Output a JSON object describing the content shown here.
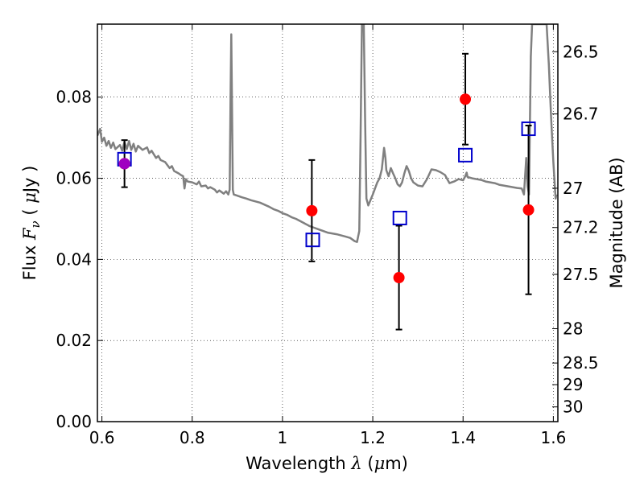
{
  "chart_data": {
    "type": "scatter",
    "xlabel": "Wavelength  λ (μm)",
    "ylabel": "Flux  F_ν  ( μJy )",
    "ylabel_parts": {
      "pre": "Flux  ",
      "var": "F",
      "sub": "ν",
      "post": "  (  ",
      "unit_mu": "μ",
      "unit_rest": "Jy )"
    },
    "xlabel_parts": {
      "pre": "Wavelength  ",
      "var": "λ",
      "post": " (",
      "unit_mu": "μ",
      "unit_rest": "m)"
    },
    "y2label": "Magnitude (AB)",
    "xlim": [
      0.59,
      1.61
    ],
    "ylim": [
      0.0,
      0.098
    ],
    "grid": true,
    "x_ticks": [
      {
        "value": 0.6,
        "label": "0.6"
      },
      {
        "value": 0.8,
        "label": "0.8"
      },
      {
        "value": 1.0,
        "label": "1"
      },
      {
        "value": 1.2,
        "label": "1.2"
      },
      {
        "value": 1.4,
        "label": "1.4"
      },
      {
        "value": 1.6,
        "label": "1.6"
      }
    ],
    "y_ticks": [
      {
        "value": 0.0,
        "label": "0.00"
      },
      {
        "value": 0.02,
        "label": "0.02"
      },
      {
        "value": 0.04,
        "label": "0.04"
      },
      {
        "value": 0.06,
        "label": "0.06"
      },
      {
        "value": 0.08,
        "label": "0.08"
      }
    ],
    "y2_ticks": [
      {
        "mag": 26.5,
        "label": "26.5"
      },
      {
        "mag": 26.7,
        "label": "26.7"
      },
      {
        "mag": 27.0,
        "label": "27"
      },
      {
        "mag": 27.2,
        "label": "27.2"
      },
      {
        "mag": 27.5,
        "label": "27.5"
      },
      {
        "mag": 28.0,
        "label": "28"
      },
      {
        "mag": 28.5,
        "label": "28.5"
      },
      {
        "mag": 29.0,
        "label": "29"
      },
      {
        "mag": 30.0,
        "label": "30"
      }
    ],
    "series": [
      {
        "kind": "line",
        "color": "#808080",
        "points": [
          [
            0.59,
            0.0705
          ],
          [
            0.596,
            0.0722
          ],
          [
            0.6,
            0.069
          ],
          [
            0.605,
            0.07
          ],
          [
            0.61,
            0.068
          ],
          [
            0.615,
            0.0692
          ],
          [
            0.62,
            0.0675
          ],
          [
            0.625,
            0.0688
          ],
          [
            0.63,
            0.0672
          ],
          [
            0.64,
            0.0682
          ],
          [
            0.645,
            0.0668
          ],
          [
            0.65,
            0.069
          ],
          [
            0.655,
            0.0672
          ],
          [
            0.66,
            0.0692
          ],
          [
            0.665,
            0.067
          ],
          [
            0.67,
            0.0685
          ],
          [
            0.675,
            0.0666
          ],
          [
            0.68,
            0.068
          ],
          [
            0.69,
            0.067
          ],
          [
            0.7,
            0.0676
          ],
          [
            0.705,
            0.0662
          ],
          [
            0.71,
            0.0668
          ],
          [
            0.72,
            0.065
          ],
          [
            0.725,
            0.0655
          ],
          [
            0.73,
            0.0645
          ],
          [
            0.74,
            0.064
          ],
          [
            0.75,
            0.0625
          ],
          [
            0.755,
            0.063
          ],
          [
            0.76,
            0.0618
          ],
          [
            0.77,
            0.0612
          ],
          [
            0.775,
            0.0608
          ],
          [
            0.78,
            0.0605
          ],
          [
            0.783,
            0.0575
          ],
          [
            0.786,
            0.0598
          ],
          [
            0.79,
            0.0592
          ],
          [
            0.8,
            0.059
          ],
          [
            0.81,
            0.0585
          ],
          [
            0.815,
            0.0592
          ],
          [
            0.82,
            0.058
          ],
          [
            0.83,
            0.0582
          ],
          [
            0.835,
            0.0575
          ],
          [
            0.84,
            0.0578
          ],
          [
            0.85,
            0.0572
          ],
          [
            0.855,
            0.0565
          ],
          [
            0.86,
            0.057
          ],
          [
            0.87,
            0.0562
          ],
          [
            0.875,
            0.0568
          ],
          [
            0.88,
            0.056
          ],
          [
            0.883,
            0.0572
          ],
          [
            0.885,
            0.08
          ],
          [
            0.8865,
            0.0955
          ],
          [
            0.888,
            0.08
          ],
          [
            0.89,
            0.0572
          ],
          [
            0.892,
            0.056
          ],
          [
            0.9,
            0.0557
          ],
          [
            0.91,
            0.0553
          ],
          [
            0.92,
            0.055
          ],
          [
            0.93,
            0.0546
          ],
          [
            0.94,
            0.0543
          ],
          [
            0.95,
            0.054
          ],
          [
            0.96,
            0.0535
          ],
          [
            0.97,
            0.053
          ],
          [
            0.98,
            0.0524
          ],
          [
            0.99,
            0.052
          ],
          [
            1.0,
            0.0514
          ],
          [
            1.01,
            0.051
          ],
          [
            1.02,
            0.0504
          ],
          [
            1.03,
            0.05
          ],
          [
            1.04,
            0.0494
          ],
          [
            1.05,
            0.0488
          ],
          [
            1.06,
            0.0482
          ],
          [
            1.07,
            0.0478
          ],
          [
            1.08,
            0.0474
          ],
          [
            1.09,
            0.047
          ],
          [
            1.1,
            0.0466
          ],
          [
            1.12,
            0.0462
          ],
          [
            1.14,
            0.0456
          ],
          [
            1.15,
            0.0453
          ],
          [
            1.16,
            0.0445
          ],
          [
            1.165,
            0.0443
          ],
          [
            1.17,
            0.047
          ],
          [
            1.173,
            0.07
          ],
          [
            1.176,
            0.098
          ],
          [
            1.18,
            0.098
          ],
          [
            1.183,
            0.075
          ],
          [
            1.186,
            0.055
          ],
          [
            1.19,
            0.0533
          ],
          [
            1.2,
            0.056
          ],
          [
            1.21,
            0.059
          ],
          [
            1.215,
            0.06
          ],
          [
            1.22,
            0.0622
          ],
          [
            1.225,
            0.0675
          ],
          [
            1.228,
            0.065
          ],
          [
            1.23,
            0.062
          ],
          [
            1.235,
            0.0605
          ],
          [
            1.24,
            0.0625
          ],
          [
            1.245,
            0.0612
          ],
          [
            1.25,
            0.06
          ],
          [
            1.255,
            0.0585
          ],
          [
            1.26,
            0.058
          ],
          [
            1.265,
            0.059
          ],
          [
            1.27,
            0.0612
          ],
          [
            1.275,
            0.063
          ],
          [
            1.28,
            0.0618
          ],
          [
            1.285,
            0.06
          ],
          [
            1.29,
            0.059
          ],
          [
            1.3,
            0.0582
          ],
          [
            1.31,
            0.058
          ],
          [
            1.32,
            0.0598
          ],
          [
            1.33,
            0.0622
          ],
          [
            1.34,
            0.062
          ],
          [
            1.35,
            0.0615
          ],
          [
            1.36,
            0.0608
          ],
          [
            1.365,
            0.0598
          ],
          [
            1.37,
            0.0588
          ],
          [
            1.38,
            0.0592
          ],
          [
            1.39,
            0.0598
          ],
          [
            1.4,
            0.0595
          ],
          [
            1.405,
            0.0605
          ],
          [
            1.408,
            0.0614
          ],
          [
            1.41,
            0.0603
          ],
          [
            1.42,
            0.06
          ],
          [
            1.43,
            0.0598
          ],
          [
            1.44,
            0.0596
          ],
          [
            1.45,
            0.0592
          ],
          [
            1.46,
            0.059
          ],
          [
            1.47,
            0.0588
          ],
          [
            1.48,
            0.0584
          ],
          [
            1.49,
            0.0582
          ],
          [
            1.5,
            0.058
          ],
          [
            1.51,
            0.0578
          ],
          [
            1.52,
            0.0576
          ],
          [
            1.53,
            0.0575
          ],
          [
            1.535,
            0.056
          ],
          [
            1.54,
            0.065
          ],
          [
            1.543,
            0.058
          ],
          [
            1.546,
            0.056
          ],
          [
            1.55,
            0.09
          ],
          [
            1.553,
            0.098
          ],
          [
            1.585,
            0.098
          ],
          [
            1.59,
            0.088
          ],
          [
            1.595,
            0.075
          ],
          [
            1.6,
            0.064
          ],
          [
            1.605,
            0.055
          ],
          [
            1.607,
            0.056
          ]
        ]
      },
      {
        "kind": "points_with_errors",
        "color": "#ff0000",
        "marker": "circle",
        "points": [
          {
            "x": 0.65,
            "y": 0.0636,
            "err": 0.0058
          },
          {
            "x": 1.065,
            "y": 0.052,
            "err": 0.0125
          },
          {
            "x": 1.258,
            "y": 0.0355,
            "err": 0.0128
          },
          {
            "x": 1.405,
            "y": 0.0795,
            "err": 0.0112
          },
          {
            "x": 1.545,
            "y": 0.0522,
            "err": 0.0208
          }
        ]
      },
      {
        "kind": "points",
        "color": "#0000cc",
        "marker": "open-square",
        "points": [
          {
            "x": 0.65,
            "y": 0.0647
          },
          {
            "x": 1.067,
            "y": 0.0448
          },
          {
            "x": 1.26,
            "y": 0.0502
          },
          {
            "x": 1.405,
            "y": 0.0657
          },
          {
            "x": 1.545,
            "y": 0.0722
          }
        ]
      },
      {
        "kind": "points",
        "color": "#a000c0",
        "marker": "circle",
        "points": [
          {
            "x": 0.65,
            "y": 0.0636
          }
        ]
      }
    ]
  }
}
